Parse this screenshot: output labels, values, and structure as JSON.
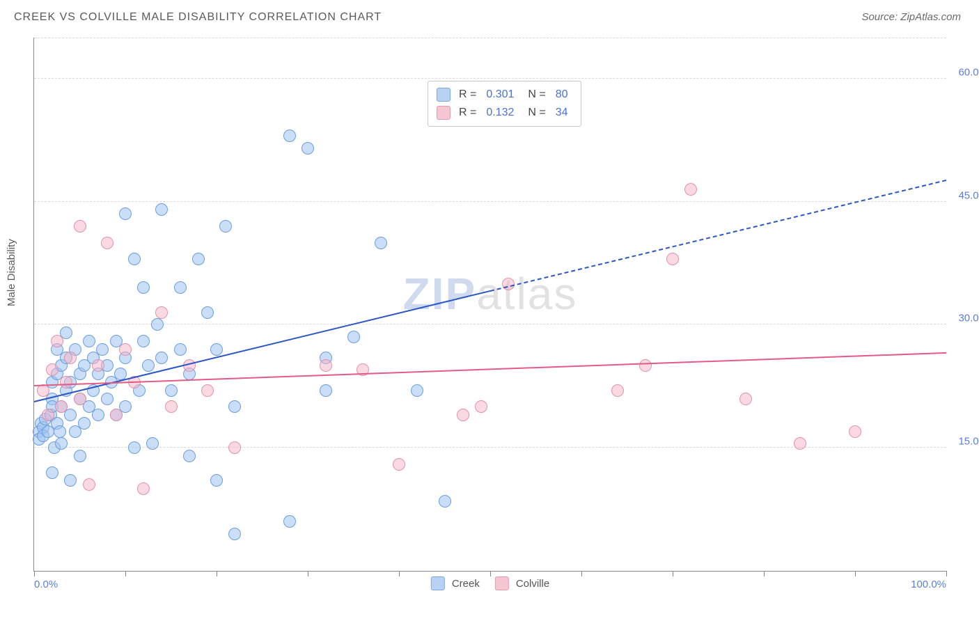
{
  "title": "CREEK VS COLVILLE MALE DISABILITY CORRELATION CHART",
  "source": "Source: ZipAtlas.com",
  "ylabel": "Male Disability",
  "watermark_zip": "ZIP",
  "watermark_atlas": "atlas",
  "chart": {
    "type": "scatter",
    "xlim": [
      0,
      100
    ],
    "ylim": [
      0,
      65
    ],
    "x_tick_step": 10,
    "x_tick_labels": {
      "0": "0.0%",
      "100": "100.0%"
    },
    "y_ticks": [
      15,
      30,
      45,
      60
    ],
    "y_tick_labels": [
      "15.0%",
      "30.0%",
      "45.0%",
      "60.0%"
    ],
    "grid_color": "#d8d8d8",
    "axis_color": "#888888",
    "background_color": "#ffffff",
    "tick_label_color": "#5b7fd6",
    "point_radius": 9,
    "point_border_width": 1.2,
    "series": [
      {
        "name": "Creek",
        "fill": "rgba(160,195,240,0.55)",
        "stroke": "#6a9de0",
        "legend_fill": "#b9d2f3",
        "legend_stroke": "#7fa8e0",
        "R": "0.301",
        "N": "80",
        "trend": {
          "color": "#2a56c6",
          "width": 2.4,
          "solid_x_end": 50,
          "y_at_0": 20.5,
          "y_at_100": 47.5
        },
        "points": [
          [
            0.5,
            17
          ],
          [
            0.5,
            16
          ],
          [
            0.8,
            18
          ],
          [
            1,
            17.5
          ],
          [
            1,
            16.5
          ],
          [
            1.2,
            18.5
          ],
          [
            1.5,
            17
          ],
          [
            1.8,
            19
          ],
          [
            2,
            12
          ],
          [
            2,
            21
          ],
          [
            2,
            23
          ],
          [
            2,
            20
          ],
          [
            2.2,
            15
          ],
          [
            2.5,
            27
          ],
          [
            2.5,
            18
          ],
          [
            2.5,
            24
          ],
          [
            2.8,
            17
          ],
          [
            3,
            25
          ],
          [
            3,
            20
          ],
          [
            3,
            15.5
          ],
          [
            3.5,
            29
          ],
          [
            3.5,
            22
          ],
          [
            3.5,
            26
          ],
          [
            4,
            11
          ],
          [
            4,
            19
          ],
          [
            4,
            23
          ],
          [
            4.5,
            27
          ],
          [
            4.5,
            17
          ],
          [
            5,
            21
          ],
          [
            5,
            24
          ],
          [
            5,
            14
          ],
          [
            5.5,
            18
          ],
          [
            5.5,
            25
          ],
          [
            6,
            28
          ],
          [
            6,
            20
          ],
          [
            6.5,
            26
          ],
          [
            6.5,
            22
          ],
          [
            7,
            24
          ],
          [
            7,
            19
          ],
          [
            7.5,
            27
          ],
          [
            8,
            21
          ],
          [
            8,
            25
          ],
          [
            8.5,
            23
          ],
          [
            9,
            28
          ],
          [
            9,
            19
          ],
          [
            9.5,
            24
          ],
          [
            10,
            43.5
          ],
          [
            10,
            26
          ],
          [
            10,
            20
          ],
          [
            11,
            38
          ],
          [
            11,
            15
          ],
          [
            11.5,
            22
          ],
          [
            12,
            34.5
          ],
          [
            12,
            28
          ],
          [
            12.5,
            25
          ],
          [
            13,
            15.5
          ],
          [
            13.5,
            30
          ],
          [
            14,
            44
          ],
          [
            14,
            26
          ],
          [
            15,
            22
          ],
          [
            16,
            34.5
          ],
          [
            16,
            27
          ],
          [
            17,
            14
          ],
          [
            17,
            24
          ],
          [
            18,
            38
          ],
          [
            19,
            31.5
          ],
          [
            20,
            11
          ],
          [
            20,
            27
          ],
          [
            21,
            42
          ],
          [
            22,
            4.5
          ],
          [
            22,
            20
          ],
          [
            28,
            53
          ],
          [
            28,
            6
          ],
          [
            30,
            51.5
          ],
          [
            32,
            26
          ],
          [
            32,
            22
          ],
          [
            35,
            28.5
          ],
          [
            38,
            40
          ],
          [
            42,
            22
          ],
          [
            45,
            8.5
          ]
        ]
      },
      {
        "name": "Colville",
        "fill": "rgba(245,180,200,0.5)",
        "stroke": "#e191ab",
        "legend_fill": "#f6c6d2",
        "legend_stroke": "#e49bb0",
        "R": "0.132",
        "N": "34",
        "trend": {
          "color": "#e35a85",
          "width": 2.2,
          "solid_x_end": 100,
          "y_at_0": 22.5,
          "y_at_100": 26.5
        },
        "points": [
          [
            1,
            22
          ],
          [
            1.5,
            19
          ],
          [
            2,
            24.5
          ],
          [
            2.5,
            28
          ],
          [
            3,
            20
          ],
          [
            3.5,
            23
          ],
          [
            4,
            26
          ],
          [
            5,
            42
          ],
          [
            5,
            21
          ],
          [
            6,
            10.5
          ],
          [
            7,
            25
          ],
          [
            8,
            40
          ],
          [
            9,
            19
          ],
          [
            10,
            27
          ],
          [
            11,
            23
          ],
          [
            12,
            10
          ],
          [
            14,
            31.5
          ],
          [
            15,
            20
          ],
          [
            17,
            25
          ],
          [
            19,
            22
          ],
          [
            22,
            15
          ],
          [
            32,
            25
          ],
          [
            36,
            24.5
          ],
          [
            40,
            13
          ],
          [
            47,
            19
          ],
          [
            49,
            20
          ],
          [
            52,
            35
          ],
          [
            64,
            22
          ],
          [
            67,
            25
          ],
          [
            70,
            38
          ],
          [
            72,
            46.5
          ],
          [
            78,
            21
          ],
          [
            84,
            15.5
          ],
          [
            90,
            17
          ]
        ]
      }
    ]
  },
  "legend_bottom": [
    {
      "label": "Creek"
    },
    {
      "label": "Colville"
    }
  ]
}
